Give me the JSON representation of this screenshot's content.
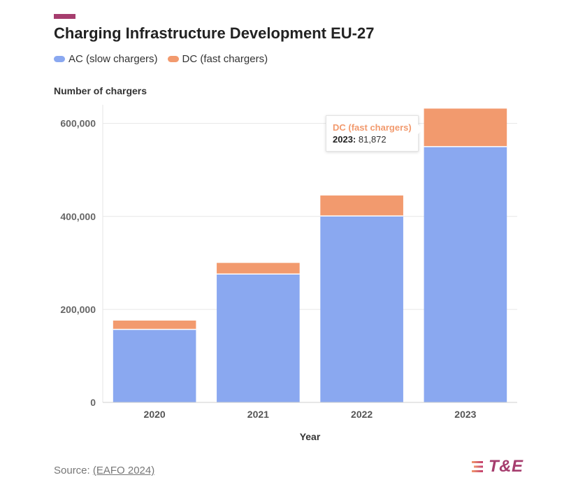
{
  "header": {
    "accent_color": "#a63d6e"
  },
  "chart_data": {
    "type": "bar",
    "stacked": true,
    "title": "Charging Infrastructure Development EU-27",
    "ylabel": "Number of chargers",
    "xlabel": "Year",
    "categories": [
      "2020",
      "2021",
      "2022",
      "2023"
    ],
    "series": [
      {
        "name": "AC (slow chargers)",
        "color": "#8aa8f0",
        "values": [
          157000,
          276000,
          401000,
          550000
        ]
      },
      {
        "name": "DC (fast chargers)",
        "color": "#f29a6e",
        "values": [
          19000,
          24000,
          44000,
          81872
        ]
      }
    ],
    "ylim": [
      0,
      640000
    ],
    "yticks": [
      0,
      200000,
      400000,
      600000
    ],
    "ytick_labels": [
      "0",
      "200,000",
      "400,000",
      "600,000"
    ],
    "grid": true
  },
  "tooltip": {
    "series": "DC (fast chargers)",
    "year_label": "2023:",
    "value": "81,872"
  },
  "footer": {
    "source_prefix": "Source: ",
    "source_link": "(EAFO 2024)",
    "logo_text": "T&E"
  }
}
